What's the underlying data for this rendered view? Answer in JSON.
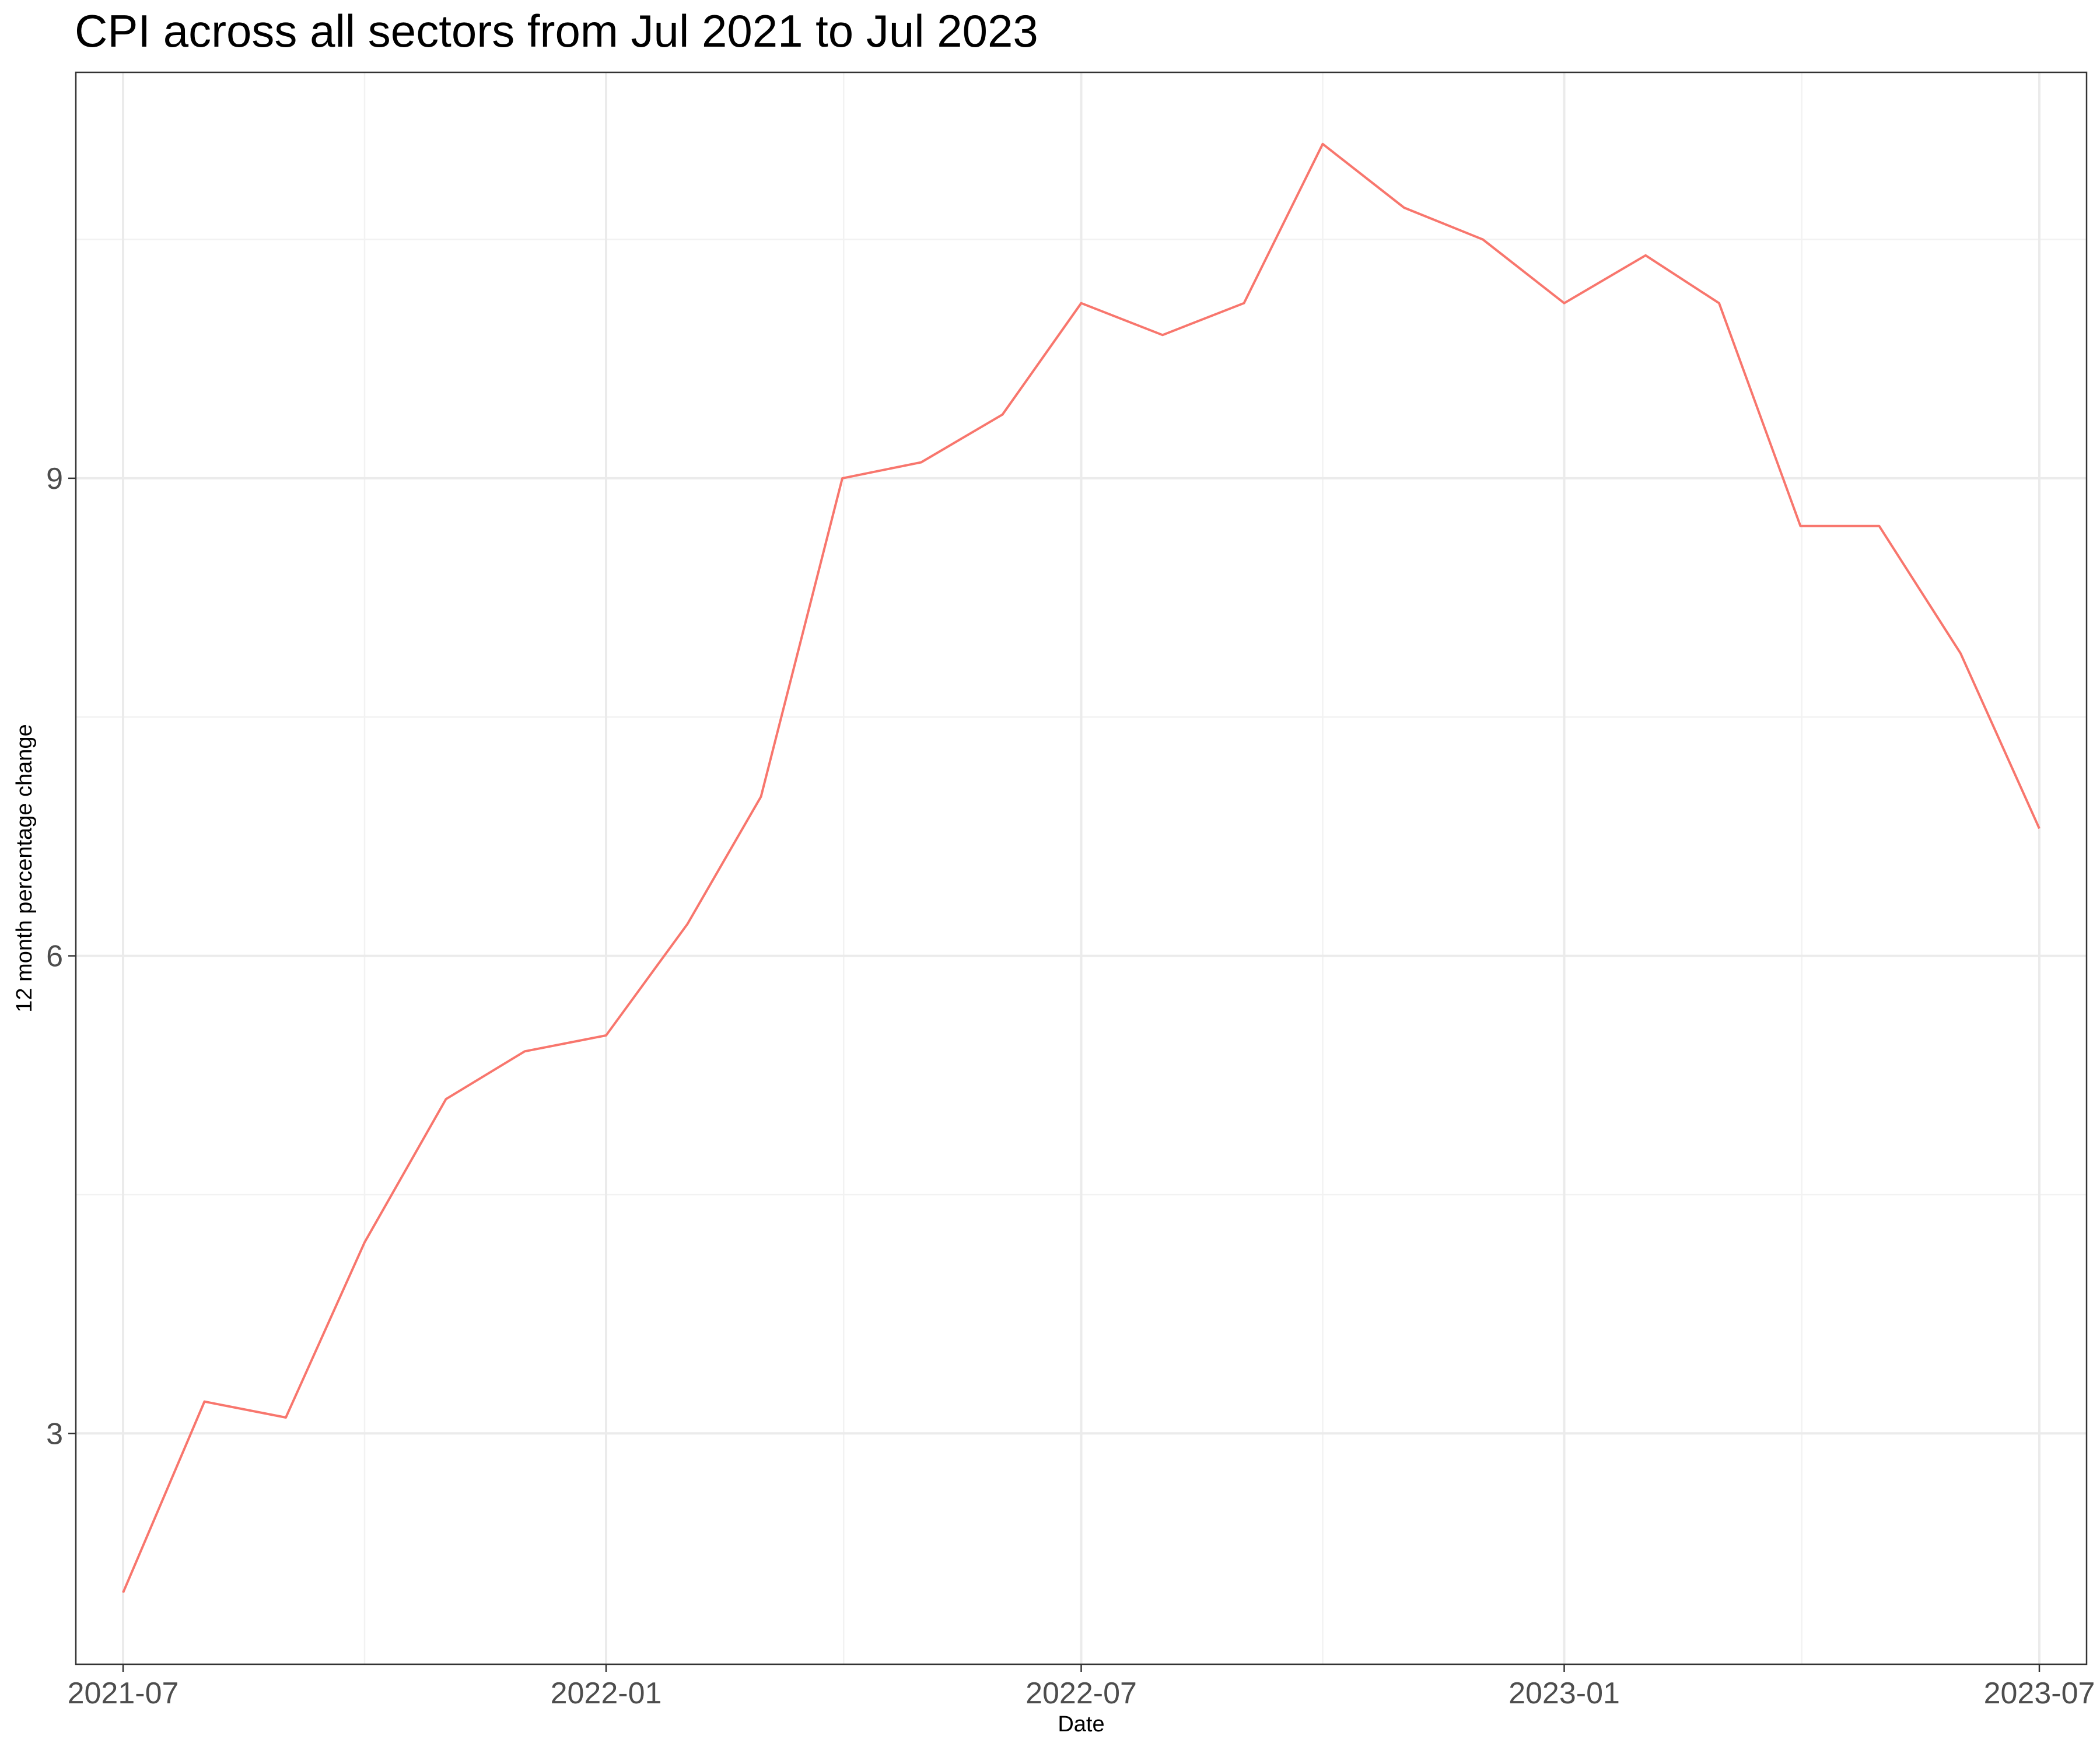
{
  "chart_data": {
    "type": "line",
    "title": "CPI across all sectors from Jul 2021 to Jul 2023",
    "xlabel": "Date",
    "ylabel": "12 month percentage change",
    "x": [
      "2021-07",
      "2021-08",
      "2021-09",
      "2021-10",
      "2021-11",
      "2021-12",
      "2022-01",
      "2022-02",
      "2022-03",
      "2022-04",
      "2022-05",
      "2022-06",
      "2022-07",
      "2022-08",
      "2022-09",
      "2022-10",
      "2022-11",
      "2022-12",
      "2023-01",
      "2023-02",
      "2023-03",
      "2023-04",
      "2023-05",
      "2023-06",
      "2023-07"
    ],
    "series": [
      {
        "values": [
          2.0,
          3.2,
          3.1,
          4.2,
          5.1,
          5.4,
          5.5,
          6.2,
          7.0,
          9.0,
          9.1,
          9.4,
          10.1,
          9.9,
          10.1,
          11.1,
          10.7,
          10.5,
          10.1,
          10.4,
          10.1,
          8.7,
          8.7,
          7.9,
          6.8
        ],
        "color": "#F8766D"
      }
    ],
    "xticks": [
      "2021-07",
      "2022-01",
      "2022-07",
      "2023-01",
      "2023-07"
    ],
    "yticks": [
      "3",
      "6",
      "9"
    ],
    "xlim": [
      "2021-06-13",
      "2023-07-19"
    ],
    "ylim": [
      1.55,
      11.55
    ],
    "grid": true,
    "legend": "none"
  }
}
